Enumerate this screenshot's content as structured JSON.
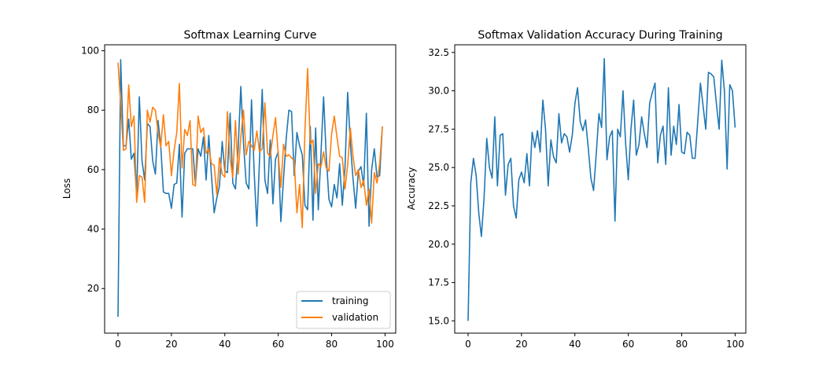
{
  "figure": {
    "background": "#ffffff"
  },
  "chart_data": [
    {
      "type": "line",
      "title": "Softmax Learning Curve",
      "xlabel": "",
      "ylabel": "Loss",
      "xlim": [
        -5,
        104
      ],
      "ylim": [
        5,
        102
      ],
      "xticks": [
        0,
        20,
        40,
        60,
        80,
        100
      ],
      "yticks": [
        20,
        40,
        60,
        80,
        100
      ],
      "grid": false,
      "legend": "lower right",
      "x_start": 0,
      "series": [
        {
          "name": "training",
          "color": "#1f77b4",
          "values": [
            10.5,
            97.0,
            68.0,
            68.0,
            77.0,
            63.5,
            65.5,
            51.5,
            84.5,
            63.0,
            56.5,
            75.5,
            74.5,
            63.0,
            58.5,
            76.5,
            68.0,
            52.5,
            52.0,
            52.0,
            47.0,
            55.0,
            55.5,
            68.5,
            44.0,
            65.5,
            67.0,
            67.0,
            67.0,
            55.0,
            67.0,
            64.5,
            71.0,
            56.5,
            71.5,
            58.0,
            45.5,
            50.5,
            54.5,
            69.5,
            59.5,
            59.0,
            79.0,
            55.5,
            53.5,
            67.0,
            88.0,
            69.0,
            55.5,
            53.5,
            83.5,
            59.0,
            41.0,
            63.5,
            87.0,
            56.5,
            52.0,
            70.0,
            48.5,
            63.5,
            66.0,
            42.5,
            57.0,
            70.5,
            80.0,
            79.5,
            58.0,
            72.5,
            68.0,
            65.0,
            48.0,
            46.5,
            74.5,
            43.0,
            74.0,
            46.5,
            65.5,
            84.5,
            64.5,
            50.0,
            47.5,
            55.0,
            50.5,
            62.0,
            48.0,
            60.5,
            86.0,
            69.0,
            57.0,
            47.0,
            59.5,
            61.0,
            54.5,
            79.0,
            41.0,
            60.0,
            67.0,
            57.5,
            58.0,
            74.5
          ]
        },
        {
          "name": "validation",
          "color": "#ff7f0e",
          "values": [
            96.0,
            82.0,
            66.5,
            67.0,
            88.5,
            74.5,
            78.0,
            49.0,
            58.0,
            57.5,
            49.0,
            80.0,
            76.0,
            81.0,
            80.0,
            72.5,
            67.5,
            78.5,
            68.0,
            69.5,
            58.0,
            66.5,
            72.5,
            89.0,
            60.5,
            73.5,
            71.5,
            76.5,
            55.0,
            54.5,
            78.0,
            72.5,
            74.0,
            65.5,
            67.0,
            62.0,
            61.5,
            51.5,
            64.0,
            58.5,
            57.5,
            79.5,
            63.5,
            57.5,
            76.5,
            58.5,
            71.0,
            80.0,
            65.0,
            69.5,
            68.0,
            66.5,
            73.0,
            66.0,
            67.0,
            82.5,
            65.5,
            64.5,
            71.5,
            77.5,
            65.5,
            54.0,
            68.5,
            64.5,
            65.0,
            64.0,
            63.0,
            45.5,
            55.0,
            40.5,
            73.0,
            94.0,
            68.5,
            70.0,
            52.0,
            62.0,
            61.0,
            66.0,
            60.5,
            59.5,
            72.0,
            78.0,
            71.0,
            64.5,
            64.0,
            53.5,
            61.5,
            74.0,
            64.5,
            58.0,
            60.0,
            54.0,
            56.5,
            48.0,
            53.5,
            42.0,
            59.0,
            55.5,
            62.0,
            74.5
          ]
        }
      ]
    },
    {
      "type": "line",
      "title": "Softmax Validation Accuracy During Training",
      "xlabel": "",
      "ylabel": "Accuracy",
      "xlim": [
        -5,
        104
      ],
      "ylim": [
        14.2,
        33.0
      ],
      "xticks": [
        0,
        20,
        40,
        60,
        80,
        100
      ],
      "yticks": [
        15.0,
        17.5,
        20.0,
        22.5,
        25.0,
        27.5,
        30.0,
        32.5
      ],
      "ytick_labels": [
        "15.0",
        "17.5",
        "20.0",
        "22.5",
        "25.0",
        "27.5",
        "30.0",
        "32.5"
      ],
      "grid": false,
      "x_start": 0,
      "series": [
        {
          "name": "",
          "color": "#1f77b4",
          "values": [
            15.0,
            24.0,
            25.6,
            24.5,
            22.0,
            20.5,
            23.0,
            26.9,
            25.0,
            24.3,
            28.3,
            23.8,
            27.1,
            27.2,
            23.2,
            25.2,
            25.6,
            22.5,
            21.7,
            24.2,
            24.7,
            24.0,
            25.9,
            23.8,
            27.3,
            26.3,
            27.4,
            26.0,
            29.4,
            27.5,
            23.8,
            26.8,
            25.7,
            25.3,
            28.5,
            26.6,
            27.2,
            27.0,
            26.0,
            27.1,
            29.2,
            30.2,
            28.0,
            27.4,
            28.1,
            26.3,
            24.3,
            23.5,
            25.9,
            28.5,
            27.6,
            32.1,
            25.5,
            27.0,
            27.4,
            21.5,
            27.5,
            27.0,
            30.0,
            26.6,
            24.2,
            27.5,
            29.4,
            25.8,
            26.5,
            28.3,
            27.2,
            26.3,
            29.2,
            29.9,
            30.5,
            25.3,
            27.1,
            27.7,
            25.2,
            30.2,
            25.8,
            27.7,
            26.5,
            29.1,
            26.0,
            25.9,
            27.3,
            27.1,
            25.6,
            25.6,
            28.0,
            30.5,
            29.0,
            27.5,
            31.2,
            31.1,
            30.9,
            29.1,
            27.5,
            32.0,
            30.0,
            24.9,
            30.4,
            30.0,
            27.6
          ]
        }
      ]
    }
  ]
}
